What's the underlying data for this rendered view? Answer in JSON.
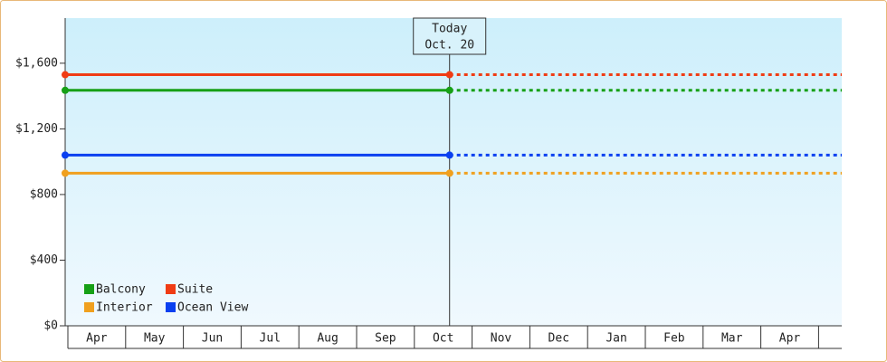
{
  "chart_data": {
    "type": "line",
    "categories": [
      "Apr",
      "May",
      "Jun",
      "Jul",
      "Aug",
      "Sep",
      "Oct",
      "Nov",
      "Dec",
      "Jan",
      "Feb",
      "Mar",
      "Apr"
    ],
    "series": [
      {
        "name": "Balcony",
        "color": "#16a016",
        "value": 1435
      },
      {
        "name": "Suite",
        "color": "#f03c14",
        "value": 1530
      },
      {
        "name": "Interior",
        "color": "#f0a01e",
        "value": 930
      },
      {
        "name": "Ocean View",
        "color": "#0a40f0",
        "value": 1040
      }
    ],
    "annotation": {
      "lines": [
        "Today",
        "Oct. 20"
      ]
    },
    "ylim": [
      0,
      1875
    ],
    "yticks": [
      {
        "value": 0,
        "label": "$0"
      },
      {
        "value": 400,
        "label": "$400"
      },
      {
        "value": 800,
        "label": "$800"
      },
      {
        "value": 1200,
        "label": "$1,200"
      },
      {
        "value": 1600,
        "label": "$1,600"
      }
    ],
    "legend": "lower-left"
  }
}
